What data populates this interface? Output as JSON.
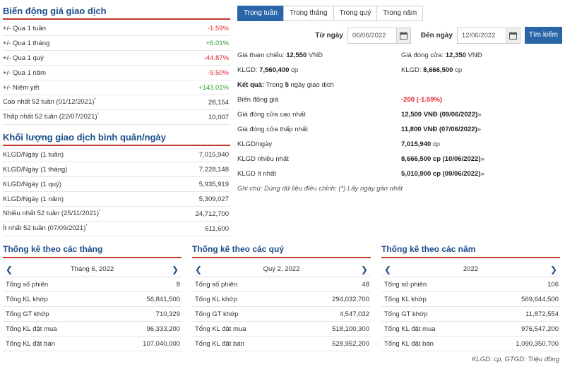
{
  "price_change": {
    "title": "Biến động giá giao dịch",
    "rows": [
      {
        "label": "+/- Qua 1 tuần",
        "value": "-1.59%",
        "tone": "red"
      },
      {
        "label": "+/- Qua 1 tháng",
        "value": "+6.01%",
        "tone": "green"
      },
      {
        "label": "+/- Qua 1 quý",
        "value": "-44.87%",
        "tone": "red"
      },
      {
        "label": "+/- Qua 1 năm",
        "value": "-9.50%",
        "tone": "red"
      },
      {
        "label": "+/- Niêm yết",
        "value": "+143.01%",
        "tone": "green"
      },
      {
        "label": "Cao nhất 52 tuần (01/12/2021)",
        "sup": "*",
        "value": "28,154",
        "tone": ""
      },
      {
        "label": "Thấp nhất 52 tuần (22/07/2021)",
        "sup": "*",
        "value": "10,007",
        "tone": ""
      }
    ]
  },
  "avg_volume": {
    "title": "Khối lượng giao dịch bình quân/ngày",
    "rows": [
      {
        "label": "KLGD/Ngày (1 tuần)",
        "value": "7,015,940"
      },
      {
        "label": "KLGD/Ngày (1 tháng)",
        "value": "7,228,148"
      },
      {
        "label": "KLGD/Ngày (1 quý)",
        "value": "5,935,919"
      },
      {
        "label": "KLGD/Ngày (1 năm)",
        "value": "5,309,027"
      },
      {
        "label": "Nhiều nhất 52 tuần (25/11/2021)",
        "sup": "*",
        "value": "24,712,700"
      },
      {
        "label": "Ít nhất 52 tuần (07/09/2021)",
        "sup": "*",
        "value": "611,600"
      }
    ]
  },
  "tabs": [
    "Trong tuần",
    "Trong tháng",
    "Trong quý",
    "Trong năm"
  ],
  "search": {
    "from_label": "Từ ngày",
    "from_value": "06/06/2022",
    "to_label": "Đến ngày",
    "to_value": "12/06/2022",
    "button": "Tìm kiếm"
  },
  "summary": {
    "ref_price_label": "Giá tham chiếu:",
    "ref_price": "12,550",
    "unit_vnd": "VNĐ",
    "close_price_label": "Giá đóng cửa:",
    "close_price": "12,350",
    "klgd_label": "KLGD:",
    "klgd_start": "7,560,400",
    "klgd_end": "8,666,500",
    "unit_cp": "cp",
    "result_label": "Kết quả:",
    "result_prefix": "Trong",
    "result_days": "5",
    "result_suffix": "ngày giao dịch",
    "rows": [
      {
        "label": "Biến động giá",
        "value": "-200",
        "extra": "(-1.59%)",
        "tone": "red"
      },
      {
        "label": "Giá đóng cửa cao nhất",
        "value": "12,500",
        "extra": "VNĐ (09/06/2022)",
        "tail": "»"
      },
      {
        "label": "Giá đóng cửa thấp nhất",
        "value": "11,800",
        "extra": "VNĐ (07/06/2022)",
        "tail": "»"
      },
      {
        "label": "KLGD/ngày",
        "value": "7,015,940",
        "extra": "cp"
      },
      {
        "label": "KLGD nhiều nhất",
        "value": "8,666,500",
        "extra": "cp (10/06/2022)",
        "tail": "»"
      },
      {
        "label": "KLGD ít nhất",
        "value": "5,010,900",
        "extra": "cp (09/06/2022)",
        "tail": "»"
      }
    ],
    "note": "Ghi chú: Dùng dữ liệu điều chỉnh; (*) Lấy ngày gần nhất"
  },
  "panels": [
    {
      "title": "Thống kê theo các tháng",
      "period": "Tháng 6, 2022",
      "rows": [
        {
          "label": "Tổng số phiên",
          "value": "8"
        },
        {
          "label": "Tổng KL khớp",
          "value": "56,841,500"
        },
        {
          "label": "Tổng GT khớp",
          "value": "710,329"
        },
        {
          "label": "Tổng KL đặt mua",
          "value": "96,333,200"
        },
        {
          "label": "Tổng KL đặt bán",
          "value": "107,040,000"
        }
      ]
    },
    {
      "title": "Thống kê theo các quý",
      "period": "Quý 2, 2022",
      "rows": [
        {
          "label": "Tổng số phiên",
          "value": "48"
        },
        {
          "label": "Tổng KL khớp",
          "value": "294,032,700"
        },
        {
          "label": "Tổng GT khớp",
          "value": "4,547,032"
        },
        {
          "label": "Tổng KL đặt mua",
          "value": "518,100,300"
        },
        {
          "label": "Tổng KL đặt bán",
          "value": "528,952,200"
        }
      ]
    },
    {
      "title": "Thống kê theo các năm",
      "period": "2022",
      "rows": [
        {
          "label": "Tổng số phiên",
          "value": "106"
        },
        {
          "label": "Tổng KL khớp",
          "value": "569,644,500"
        },
        {
          "label": "Tổng GT khớp",
          "value": "11,872,554"
        },
        {
          "label": "Tổng KL đặt mua",
          "value": "976,547,200"
        },
        {
          "label": "Tổng KL đặt bán",
          "value": "1,090,350,700"
        }
      ]
    }
  ],
  "footnote": "KLGD: cp, GTGD: Triệu đồng",
  "colors": {
    "accent": "#2a65a8",
    "title": "#1a4f8a",
    "rule": "#c0392b",
    "up": "#2a9d2a",
    "down": "#e0262d"
  },
  "icons": {
    "calendar": "calendar-icon",
    "prev": "chevron-left-icon",
    "next": "chevron-right-icon"
  }
}
